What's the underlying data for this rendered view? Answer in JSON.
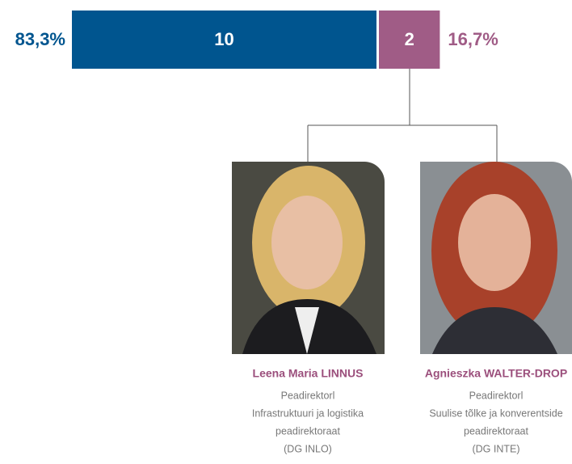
{
  "chart_data": {
    "type": "stacked-bar",
    "series": [
      {
        "color": "#00558f",
        "values": [
          10
        ],
        "share": [
          83.3
        ],
        "share_labels": [
          "83,3%"
        ]
      },
      {
        "color": "#a05c86",
        "values": [
          2
        ],
        "share": [
          16.7
        ],
        "share_labels": [
          "16,7%"
        ]
      }
    ],
    "people": [
      {
        "name": "Leena Maria LINNUS",
        "lines": [
          "Peadirektorl",
          "Infrastruktuuri ja logistika",
          "peadirektoraat",
          "(DG INLO)"
        ]
      },
      {
        "name": "Agnieszka WALTER-DROP",
        "lines": [
          "Peadirektorl",
          "Suulise tõlke ja konverentside",
          "peadirektoraat",
          "(DG INTE)"
        ]
      }
    ]
  }
}
